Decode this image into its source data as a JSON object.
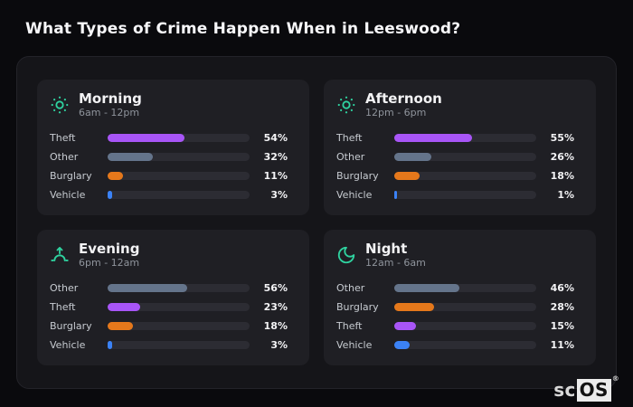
{
  "page": {
    "title": "What Types of Crime Happen When in Leeswood?"
  },
  "watermark": {
    "prefix": "sc",
    "boxed": "OS",
    "registered": "®"
  },
  "colors": {
    "theft": "#a855f7",
    "other": "#64748b",
    "burglary": "#e5781b",
    "vehicle": "#3b82f6",
    "icon": "#2fd3a0",
    "accent_track": "#2c2c33"
  },
  "chart_data": [
    {
      "type": "bar",
      "title": "Morning",
      "subtitle": "6am - 12pm",
      "icon": "sun-icon",
      "categories": [
        "Theft",
        "Other",
        "Burglary",
        "Vehicle"
      ],
      "values": [
        54,
        32,
        11,
        3
      ],
      "unit": "%",
      "xlim": [
        0,
        100
      ]
    },
    {
      "type": "bar",
      "title": "Afternoon",
      "subtitle": "12pm - 6pm",
      "icon": "sun-icon",
      "categories": [
        "Theft",
        "Other",
        "Burglary",
        "Vehicle"
      ],
      "values": [
        55,
        26,
        18,
        1
      ],
      "unit": "%",
      "xlim": [
        0,
        100
      ]
    },
    {
      "type": "bar",
      "title": "Evening",
      "subtitle": "6pm - 12am",
      "icon": "sunrise-icon",
      "categories": [
        "Other",
        "Theft",
        "Burglary",
        "Vehicle"
      ],
      "values": [
        56,
        23,
        18,
        3
      ],
      "unit": "%",
      "xlim": [
        0,
        100
      ]
    },
    {
      "type": "bar",
      "title": "Night",
      "subtitle": "12am - 6am",
      "icon": "moon-icon",
      "categories": [
        "Other",
        "Burglary",
        "Theft",
        "Vehicle"
      ],
      "values": [
        46,
        28,
        15,
        11
      ],
      "unit": "%",
      "xlim": [
        0,
        100
      ]
    }
  ]
}
